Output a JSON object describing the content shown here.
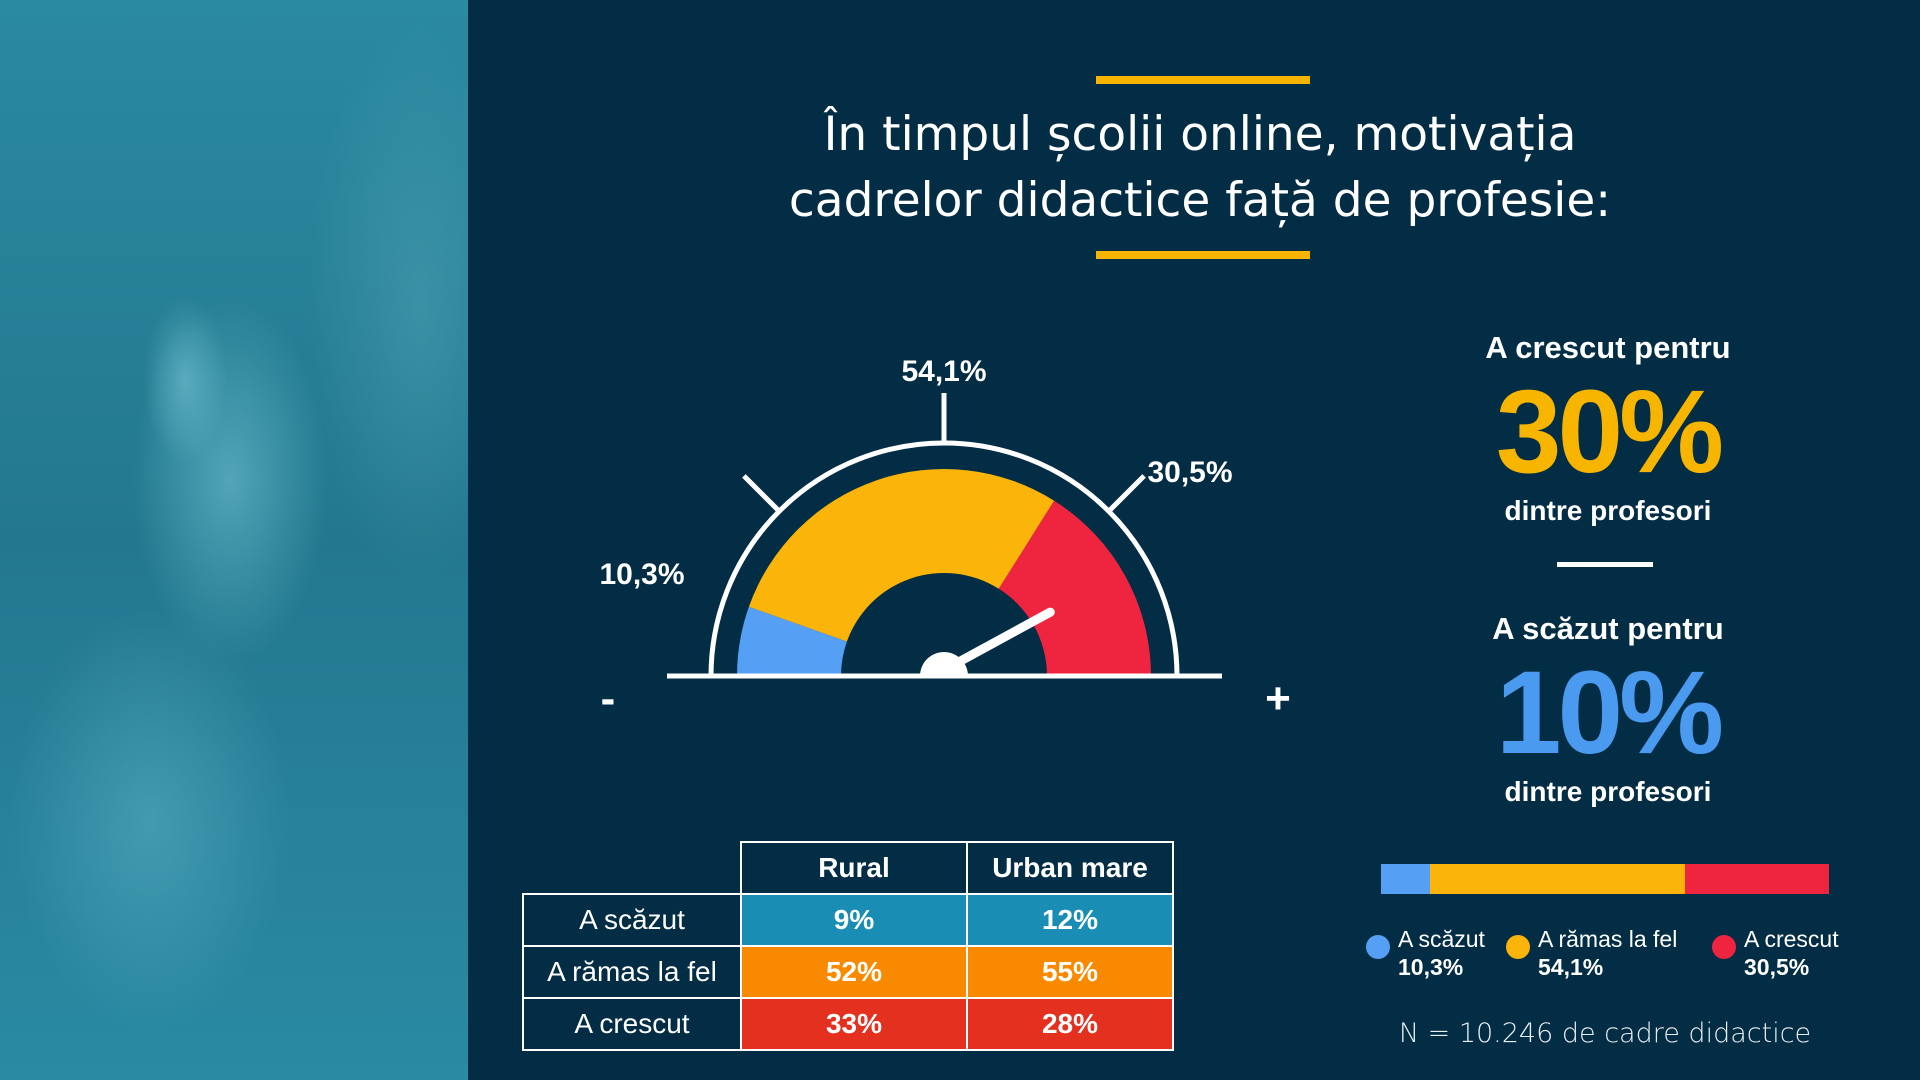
{
  "title": {
    "line1": "În timpul școlii online, motivația",
    "line2": "cadrelor didactice față de profesie:"
  },
  "gauge": {
    "labels": {
      "scazut": "10,3%",
      "ramas": "54,1%",
      "crescut": "30,5%"
    },
    "minus": "-",
    "plus": "+",
    "values": {
      "scazut": 10.3,
      "ramas": 54.1,
      "crescut": 30.5
    },
    "colors": {
      "scazut": "#55a0f5",
      "ramas": "#fbb40a",
      "crescut": "#ef2540"
    }
  },
  "highlights": {
    "up_heading": "A crescut pentru",
    "up_value": "30%",
    "up_sub": "dintre profesori",
    "down_heading": "A scăzut pentru",
    "down_value": "10%",
    "down_sub": "dintre profesori"
  },
  "table": {
    "headers": [
      "Rural",
      "Urban mare"
    ],
    "rows": [
      {
        "label": "A scăzut",
        "rural": "9%",
        "urban": "12%",
        "color": "#1a8db5"
      },
      {
        "label": "A rămas la fel",
        "rural": "52%",
        "urban": "55%",
        "color": "#f98a00"
      },
      {
        "label": "A crescut",
        "rural": "33%",
        "urban": "28%",
        "color": "#e3301f"
      }
    ]
  },
  "legend": [
    {
      "label": "A scăzut",
      "value": "10,3%"
    },
    {
      "label": "A rămas la fel",
      "value": "54,1%"
    },
    {
      "label": "A crescut",
      "value": "30,5%"
    }
  ],
  "footnote": "N = 10.246 de cadre didactice"
}
